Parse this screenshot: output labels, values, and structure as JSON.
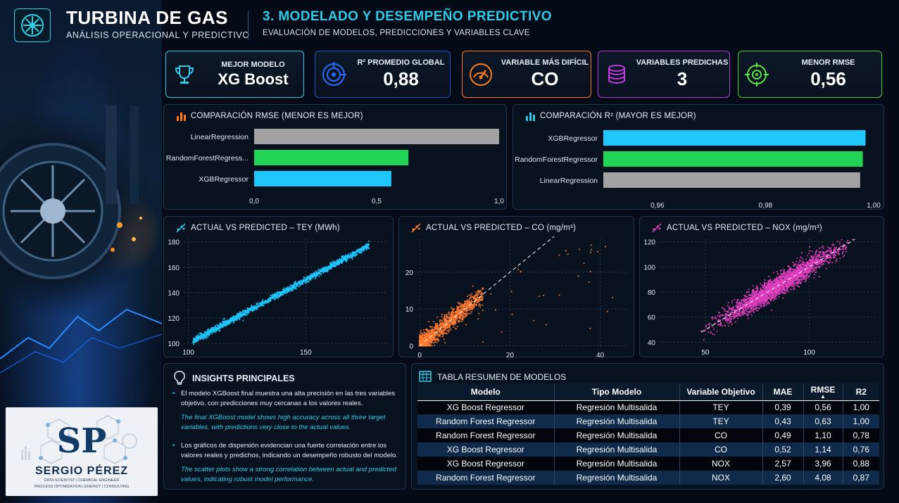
{
  "header": {
    "title": "TURBINA DE GAS",
    "subtitle": "ANÁLISIS OPERACIONAL Y PREDICTIVO",
    "section_title": "3. MODELADO Y DESEMPEÑO PREDICTIVO",
    "section_sub": "EVALUACIÓN DE MODELOS, PREDICCIONES Y VARIABLES CLAVE"
  },
  "kpis": {
    "best_model": {
      "label": "MEJOR MODELO",
      "value": "XG Boost",
      "color": "#2ecbe8",
      "icon": "trophy-icon"
    },
    "r2_global": {
      "label": "R² PROMEDIO GLOBAL",
      "value": "0,88",
      "color": "#1e6bff",
      "icon": "target-icon"
    },
    "hardest_var": {
      "label": "VARIABLE MÁS DIFÍCIL",
      "value": "CO",
      "color": "#ff7a1a",
      "icon": "gauge-icon"
    },
    "vars_predicted": {
      "label": "VARIABLES PREDICHAS",
      "value": "3",
      "color": "#c03ce0",
      "icon": "database-icon"
    },
    "min_rmse": {
      "label": "MENOR RMSE",
      "value": "0,56",
      "color": "#5ee048",
      "icon": "crosshair-icon"
    }
  },
  "rmse_panel": {
    "title": "COMPARACIÓN RMSE (MENOR ES MEJOR)"
  },
  "r2_panel": {
    "title": "COMPARACIÓN R² (MAYOR ES MEJOR)"
  },
  "tey_panel": {
    "title": "ACTUAL VS PREDICTED – TEY (MWh)"
  },
  "co_panel": {
    "title": "ACTUAL VS PREDICTED – CO (mg/m³)"
  },
  "nox_panel": {
    "title": "ACTUAL VS PREDICTED – NOX (mg/m³)"
  },
  "insights": {
    "title": "INSIGHTS PRINCIPALES",
    "items": [
      {
        "es": "El modelo XGBoost final muestra una alta precisión en las tres variables objetivo, con predicciones muy cercanas a los valores reales.",
        "en": "The final XGBoost model shows high accuracy across all three target variables, with predictions very close to the actual values."
      },
      {
        "es": "Los gráficos de dispersión evidencian una fuerte correlación entre los valores reales y predichos, indicando un desempeño robusto del modelo.",
        "en": "The scatter plots show a strong correlation between actual and predicted values, indicating robust model performance."
      }
    ]
  },
  "brand": {
    "initials": "SP",
    "name": "SERGIO PÉREZ",
    "tagline1": "DATA SCIENTIST | CHEMICAL ENGINEER",
    "tagline2": "PROCESS OPTIMIZATION | ENERGY | CONSULTING"
  },
  "table": {
    "title": "TABLA RESUMEN DE MODELOS",
    "headers": [
      "Modelo",
      "Tipo Modelo",
      "Variable Objetivo",
      "MAE",
      "RMSE",
      "R2"
    ],
    "rows": [
      [
        "XG Boost Regressor",
        "Regresión Multisalida",
        "TEY",
        "0,39",
        "0,56",
        "1,00"
      ],
      [
        "Random Forest Regressor",
        "Regresión Multisalida",
        "TEY",
        "0,43",
        "0,63",
        "1,00"
      ],
      [
        "Random Forest Regressor",
        "Regresión Multisalida",
        "CO",
        "0,49",
        "1,10",
        "0,78"
      ],
      [
        "XG Boost Regressor",
        "Regresión Multisalida",
        "CO",
        "0,52",
        "1,14",
        "0,76"
      ],
      [
        "XG Boost Regressor",
        "Regresión Multisalida",
        "NOX",
        "2,57",
        "3,96",
        "0,88"
      ],
      [
        "Random Forest Regressor",
        "Regresión Multisalida",
        "NOX",
        "2,60",
        "4,08",
        "0,87"
      ]
    ]
  },
  "chart_data": [
    {
      "type": "bar",
      "orientation": "horizontal",
      "title": "COMPARACIÓN RMSE (MENOR ES MEJOR)",
      "categories": [
        "LinearRegression",
        "RandomForestRegress...",
        "XGBRegressor"
      ],
      "values": [
        1.0,
        0.63,
        0.56
      ],
      "colors": [
        "#a3a3a3",
        "#22d455",
        "#1ec8ff"
      ],
      "xlim": [
        0,
        1
      ],
      "ticks": [
        "0,0",
        "0,5",
        "1,0"
      ]
    },
    {
      "type": "bar",
      "orientation": "horizontal",
      "title": "COMPARACIÓN R² (MAYOR ES MEJOR)",
      "categories": [
        "XGBRegressor",
        "RandomForestRegressor",
        "LinearRegression"
      ],
      "values": [
        0.9985,
        0.998,
        0.9975
      ],
      "colors": [
        "#1ec8ff",
        "#22d455",
        "#a3a3a3"
      ],
      "xlim": [
        0.95,
        1.0
      ],
      "ticks": [
        "0,96",
        "0,98",
        "1,00"
      ]
    },
    {
      "type": "scatter",
      "title": "ACTUAL VS PREDICTED – TEY (MWh)",
      "color": "#1ec8ff",
      "xlim": [
        98,
        185
      ],
      "ylim": [
        99,
        182
      ],
      "xticks": [
        100,
        150
      ],
      "yticks": [
        100,
        120,
        140,
        160,
        180
      ],
      "trend": "y = x",
      "spread": 1.2,
      "n_points": 1500
    },
    {
      "type": "scatter",
      "title": "ACTUAL VS PREDICTED – CO (mg/m³)",
      "color": "#ff7a30",
      "xlim": [
        -0.5,
        46
      ],
      "ylim": [
        -0.5,
        29
      ],
      "xticks": [
        0,
        20,
        40
      ],
      "yticks": [
        0,
        10,
        20
      ],
      "trend": "y = x",
      "spread": 1.3,
      "n_points": 1500
    },
    {
      "type": "scatter",
      "title": "ACTUAL VS PREDICTED – NOX (mg/m³)",
      "color": "#e040c0",
      "xlim": [
        28,
        133
      ],
      "ylim": [
        38,
        122
      ],
      "xticks": [
        50,
        100
      ],
      "yticks": [
        40,
        60,
        80,
        100,
        120
      ],
      "trend": "y = x",
      "spread": 4,
      "n_points": 2500
    }
  ]
}
